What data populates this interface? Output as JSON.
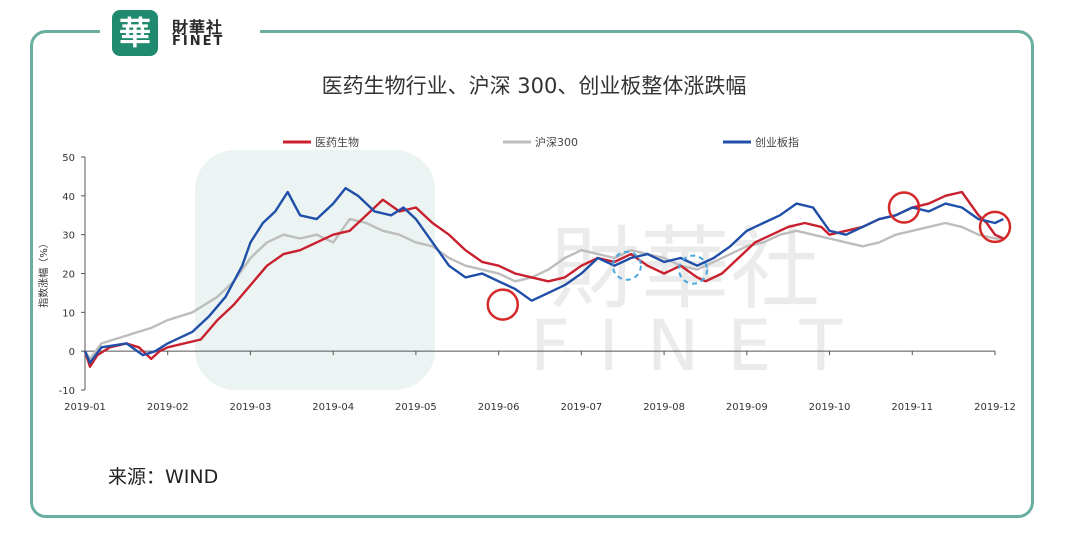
{
  "logo": {
    "seal": "華",
    "name_cn": "財華社",
    "name_en": "FINET"
  },
  "watermark": {
    "cn": "財華社",
    "en": "FINET"
  },
  "source": "来源：WIND",
  "colors": {
    "frame": "#6aaea0",
    "pharma": "#c8202e",
    "csi300": "#bdbdbd",
    "chinext": "#1f4fa8",
    "circle_red": "#d42a2a",
    "circle_blue": "#4aa8de"
  },
  "chart_data": {
    "type": "line",
    "title": "医药生物行业、沪深 300、创业板整体涨跌幅",
    "ylabel": "指数涨幅（%）",
    "xlabel": "",
    "ylim": [
      -10,
      50
    ],
    "yticks": [
      -10,
      0,
      10,
      20,
      30,
      40,
      50
    ],
    "xticks": [
      "2019-01",
      "2019-02",
      "2019-03",
      "2019-04",
      "2019-05",
      "2019-06",
      "2019-07",
      "2019-08",
      "2019-09",
      "2019-10",
      "2019-11",
      "2019-12"
    ],
    "legend_position": "top",
    "series": [
      {
        "name": "医药生物",
        "color": "#c8202e",
        "points": [
          [
            0,
            0
          ],
          [
            0.06,
            -4
          ],
          [
            0.15,
            -1
          ],
          [
            0.3,
            1
          ],
          [
            0.5,
            2
          ],
          [
            0.65,
            1
          ],
          [
            0.8,
            -2
          ],
          [
            0.9,
            0
          ],
          [
            1.0,
            1
          ],
          [
            1.4,
            3
          ],
          [
            1.6,
            8
          ],
          [
            1.8,
            12
          ],
          [
            2.0,
            17
          ],
          [
            2.2,
            22
          ],
          [
            2.4,
            25
          ],
          [
            2.6,
            26
          ],
          [
            2.8,
            28
          ],
          [
            3.0,
            30
          ],
          [
            3.2,
            31
          ],
          [
            3.4,
            35
          ],
          [
            3.6,
            39
          ],
          [
            3.8,
            36
          ],
          [
            4.0,
            37
          ],
          [
            4.2,
            33
          ],
          [
            4.4,
            30
          ],
          [
            4.6,
            26
          ],
          [
            4.8,
            23
          ],
          [
            5.0,
            22
          ],
          [
            5.2,
            20
          ],
          [
            5.4,
            19
          ],
          [
            5.6,
            18
          ],
          [
            5.8,
            19
          ],
          [
            6.0,
            22
          ],
          [
            6.2,
            24
          ],
          [
            6.4,
            23
          ],
          [
            6.6,
            25
          ],
          [
            6.8,
            22
          ],
          [
            7.0,
            20
          ],
          [
            7.2,
            22
          ],
          [
            7.4,
            19
          ],
          [
            7.5,
            18
          ],
          [
            7.7,
            20
          ],
          [
            7.9,
            24
          ],
          [
            8.1,
            28
          ],
          [
            8.3,
            30
          ],
          [
            8.5,
            32
          ],
          [
            8.7,
            33
          ],
          [
            8.9,
            32
          ],
          [
            9.0,
            30
          ],
          [
            9.2,
            31
          ],
          [
            9.4,
            32
          ],
          [
            9.6,
            34
          ],
          [
            9.8,
            35
          ],
          [
            10.0,
            37
          ],
          [
            10.2,
            38
          ],
          [
            10.4,
            40
          ],
          [
            10.6,
            41
          ],
          [
            10.8,
            35
          ],
          [
            10.9,
            33
          ],
          [
            11.0,
            30
          ],
          [
            11.1,
            29
          ]
        ]
      },
      {
        "name": "沪深300",
        "color": "#bdbdbd",
        "points": [
          [
            0,
            0
          ],
          [
            0.06,
            -2
          ],
          [
            0.2,
            2
          ],
          [
            0.5,
            4
          ],
          [
            0.8,
            6
          ],
          [
            1.0,
            8
          ],
          [
            1.3,
            10
          ],
          [
            1.6,
            14
          ],
          [
            1.8,
            18
          ],
          [
            2.0,
            24
          ],
          [
            2.2,
            28
          ],
          [
            2.4,
            30
          ],
          [
            2.6,
            29
          ],
          [
            2.8,
            30
          ],
          [
            3.0,
            28
          ],
          [
            3.2,
            34
          ],
          [
            3.4,
            33
          ],
          [
            3.6,
            31
          ],
          [
            3.8,
            30
          ],
          [
            4.0,
            28
          ],
          [
            4.2,
            27
          ],
          [
            4.4,
            24
          ],
          [
            4.6,
            22
          ],
          [
            4.8,
            21
          ],
          [
            5.0,
            20
          ],
          [
            5.2,
            18
          ],
          [
            5.4,
            19
          ],
          [
            5.6,
            21
          ],
          [
            5.8,
            24
          ],
          [
            6.0,
            26
          ],
          [
            6.2,
            25
          ],
          [
            6.4,
            24
          ],
          [
            6.6,
            26
          ],
          [
            6.8,
            25
          ],
          [
            7.0,
            24
          ],
          [
            7.2,
            22
          ],
          [
            7.4,
            21
          ],
          [
            7.6,
            23
          ],
          [
            7.8,
            25
          ],
          [
            8.0,
            27
          ],
          [
            8.2,
            28
          ],
          [
            8.4,
            30
          ],
          [
            8.6,
            31
          ],
          [
            8.8,
            30
          ],
          [
            9.0,
            29
          ],
          [
            9.2,
            28
          ],
          [
            9.4,
            27
          ],
          [
            9.6,
            28
          ],
          [
            9.8,
            30
          ],
          [
            10.0,
            31
          ],
          [
            10.2,
            32
          ],
          [
            10.4,
            33
          ],
          [
            10.6,
            32
          ],
          [
            10.8,
            30
          ],
          [
            11.0,
            29
          ],
          [
            11.1,
            29
          ]
        ]
      },
      {
        "name": "创业板指",
        "color": "#1f4fa8",
        "points": [
          [
            0,
            0
          ],
          [
            0.06,
            -3
          ],
          [
            0.2,
            1
          ],
          [
            0.5,
            2
          ],
          [
            0.7,
            -1
          ],
          [
            0.85,
            0
          ],
          [
            1.0,
            2
          ],
          [
            1.3,
            5
          ],
          [
            1.5,
            9
          ],
          [
            1.7,
            14
          ],
          [
            1.9,
            22
          ],
          [
            2.0,
            28
          ],
          [
            2.15,
            33
          ],
          [
            2.3,
            36
          ],
          [
            2.45,
            41
          ],
          [
            2.6,
            35
          ],
          [
            2.8,
            34
          ],
          [
            3.0,
            38
          ],
          [
            3.15,
            42
          ],
          [
            3.3,
            40
          ],
          [
            3.5,
            36
          ],
          [
            3.7,
            35
          ],
          [
            3.85,
            37
          ],
          [
            4.0,
            34
          ],
          [
            4.2,
            28
          ],
          [
            4.4,
            22
          ],
          [
            4.6,
            19
          ],
          [
            4.8,
            20
          ],
          [
            5.0,
            18
          ],
          [
            5.2,
            16
          ],
          [
            5.4,
            13
          ],
          [
            5.6,
            15
          ],
          [
            5.8,
            17
          ],
          [
            6.0,
            20
          ],
          [
            6.2,
            24
          ],
          [
            6.4,
            22
          ],
          [
            6.6,
            24
          ],
          [
            6.8,
            25
          ],
          [
            7.0,
            23
          ],
          [
            7.2,
            24
          ],
          [
            7.4,
            22
          ],
          [
            7.6,
            24
          ],
          [
            7.8,
            27
          ],
          [
            8.0,
            31
          ],
          [
            8.2,
            33
          ],
          [
            8.4,
            35
          ],
          [
            8.6,
            38
          ],
          [
            8.8,
            37
          ],
          [
            9.0,
            31
          ],
          [
            9.2,
            30
          ],
          [
            9.4,
            32
          ],
          [
            9.6,
            34
          ],
          [
            9.8,
            35
          ],
          [
            10.0,
            37
          ],
          [
            10.2,
            36
          ],
          [
            10.4,
            38
          ],
          [
            10.6,
            37
          ],
          [
            10.8,
            34
          ],
          [
            11.0,
            33
          ],
          [
            11.1,
            34
          ]
        ]
      }
    ],
    "annotations": [
      {
        "type": "circle",
        "style": "solid-red",
        "x": 5.05,
        "y": 12
      },
      {
        "type": "circle",
        "style": "dashed-blue",
        "x": 6.55,
        "y": 22
      },
      {
        "type": "circle",
        "style": "dashed-blue",
        "x": 7.35,
        "y": 21
      },
      {
        "type": "circle",
        "style": "solid-red",
        "x": 9.9,
        "y": 37
      },
      {
        "type": "circle",
        "style": "solid-red",
        "x": 11.0,
        "y": 32
      }
    ]
  }
}
